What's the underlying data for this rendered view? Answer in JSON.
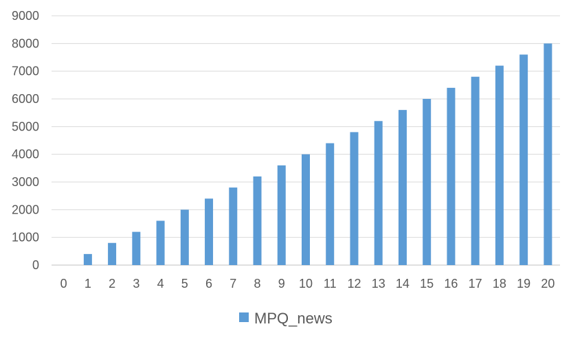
{
  "chart_data": {
    "type": "bar",
    "title": "",
    "xlabel": "",
    "ylabel": "",
    "categories": [
      "0",
      "1",
      "2",
      "3",
      "4",
      "5",
      "6",
      "7",
      "8",
      "9",
      "10",
      "11",
      "12",
      "13",
      "14",
      "15",
      "16",
      "17",
      "18",
      "19",
      "20"
    ],
    "series": [
      {
        "name": "MPQ_news",
        "color": "#5B9BD5",
        "values": [
          0,
          400,
          800,
          1200,
          1600,
          2000,
          2400,
          2800,
          3200,
          3600,
          4000,
          4400,
          4800,
          5200,
          5600,
          6000,
          6400,
          6800,
          7200,
          7600,
          8000
        ]
      }
    ],
    "ylim": [
      0,
      9000
    ],
    "yticks": [
      "0",
      "1000",
      "2000",
      "3000",
      "4000",
      "5000",
      "6000",
      "7000",
      "8000",
      "9000"
    ],
    "grid": true,
    "legend_position": "bottom"
  }
}
